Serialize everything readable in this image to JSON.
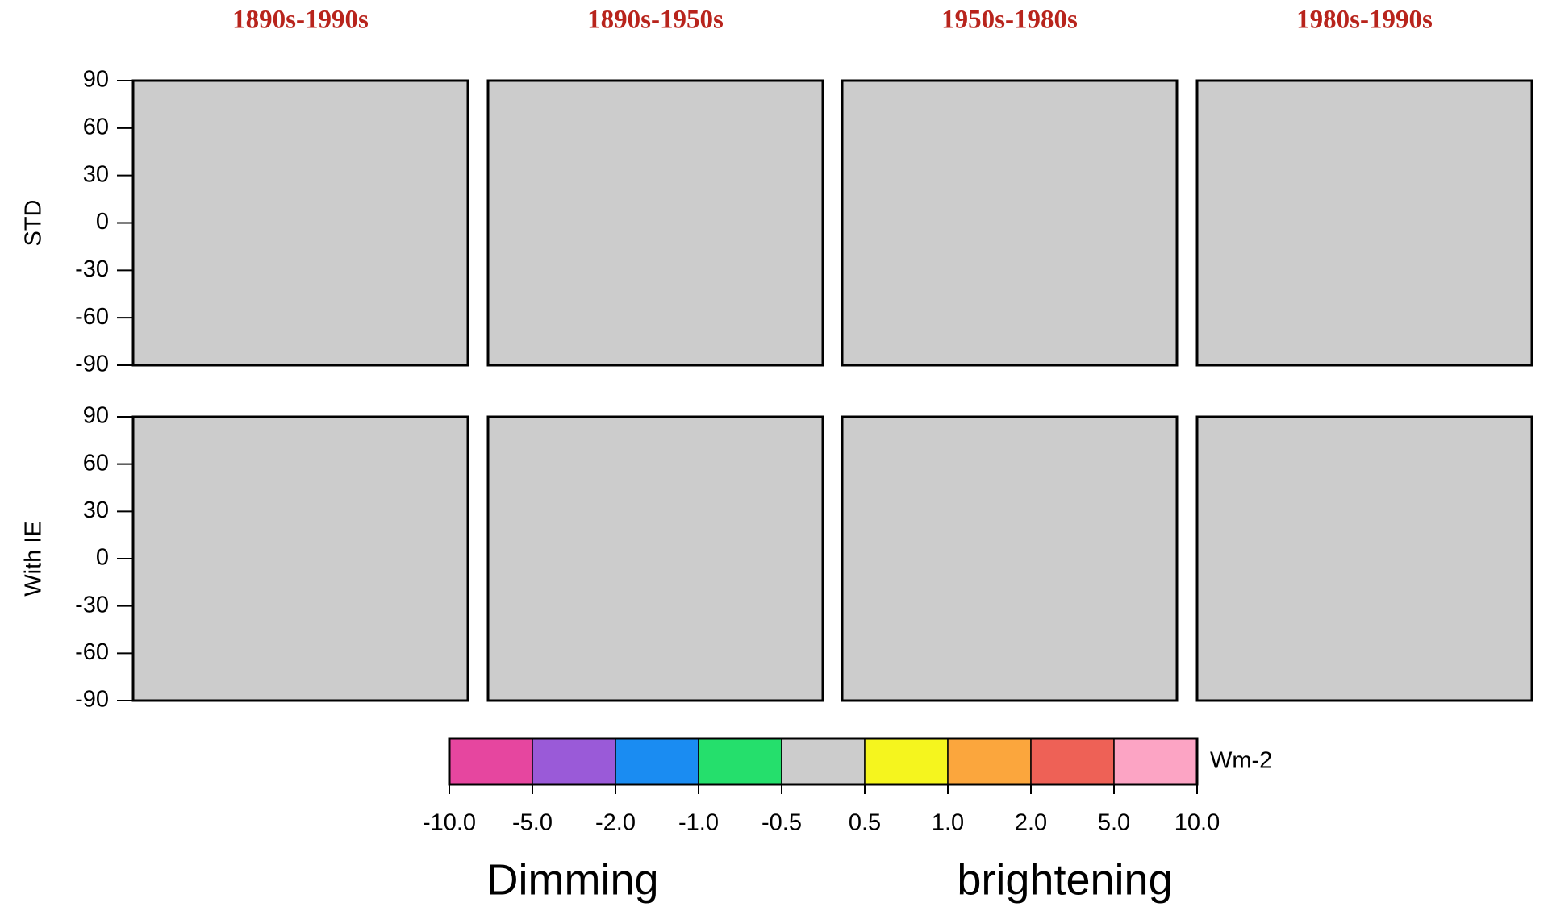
{
  "figure": {
    "columns": [
      "1890s-1990s",
      "1890s-1950s",
      "1950s-1980s",
      "1980s-1990s"
    ],
    "rows": [
      "STD",
      "With IE"
    ],
    "lat_ticks": [
      90,
      60,
      30,
      0,
      -30,
      -60,
      -90
    ],
    "lat_lim": [
      -90,
      90
    ],
    "colorbar": {
      "ticks": [
        {
          "value": -10,
          "label": "-10.0"
        },
        {
          "value": -5,
          "label": "-5.0"
        },
        {
          "value": -2,
          "label": "-2.0"
        },
        {
          "value": -1,
          "label": "-1.0"
        },
        {
          "value": -0.5,
          "label": "-0.5"
        },
        0.5,
        {
          "value": 1,
          "label": "1.0"
        },
        {
          "value": 2,
          "label": "2.0"
        },
        {
          "value": 5,
          "label": "5.0"
        },
        {
          "value": 10,
          "label": "10.0"
        }
      ],
      "colors": [
        "#e6469f",
        "#9a5ad8",
        "#1a8cf2",
        "#25df6c",
        "#cccccc",
        "#f5f51e",
        "#fba63d",
        "#ee6156",
        "#fca4c4"
      ],
      "unit": "Wm-2"
    },
    "left_label": "Dimming",
    "right_label": "brightening"
  }
}
